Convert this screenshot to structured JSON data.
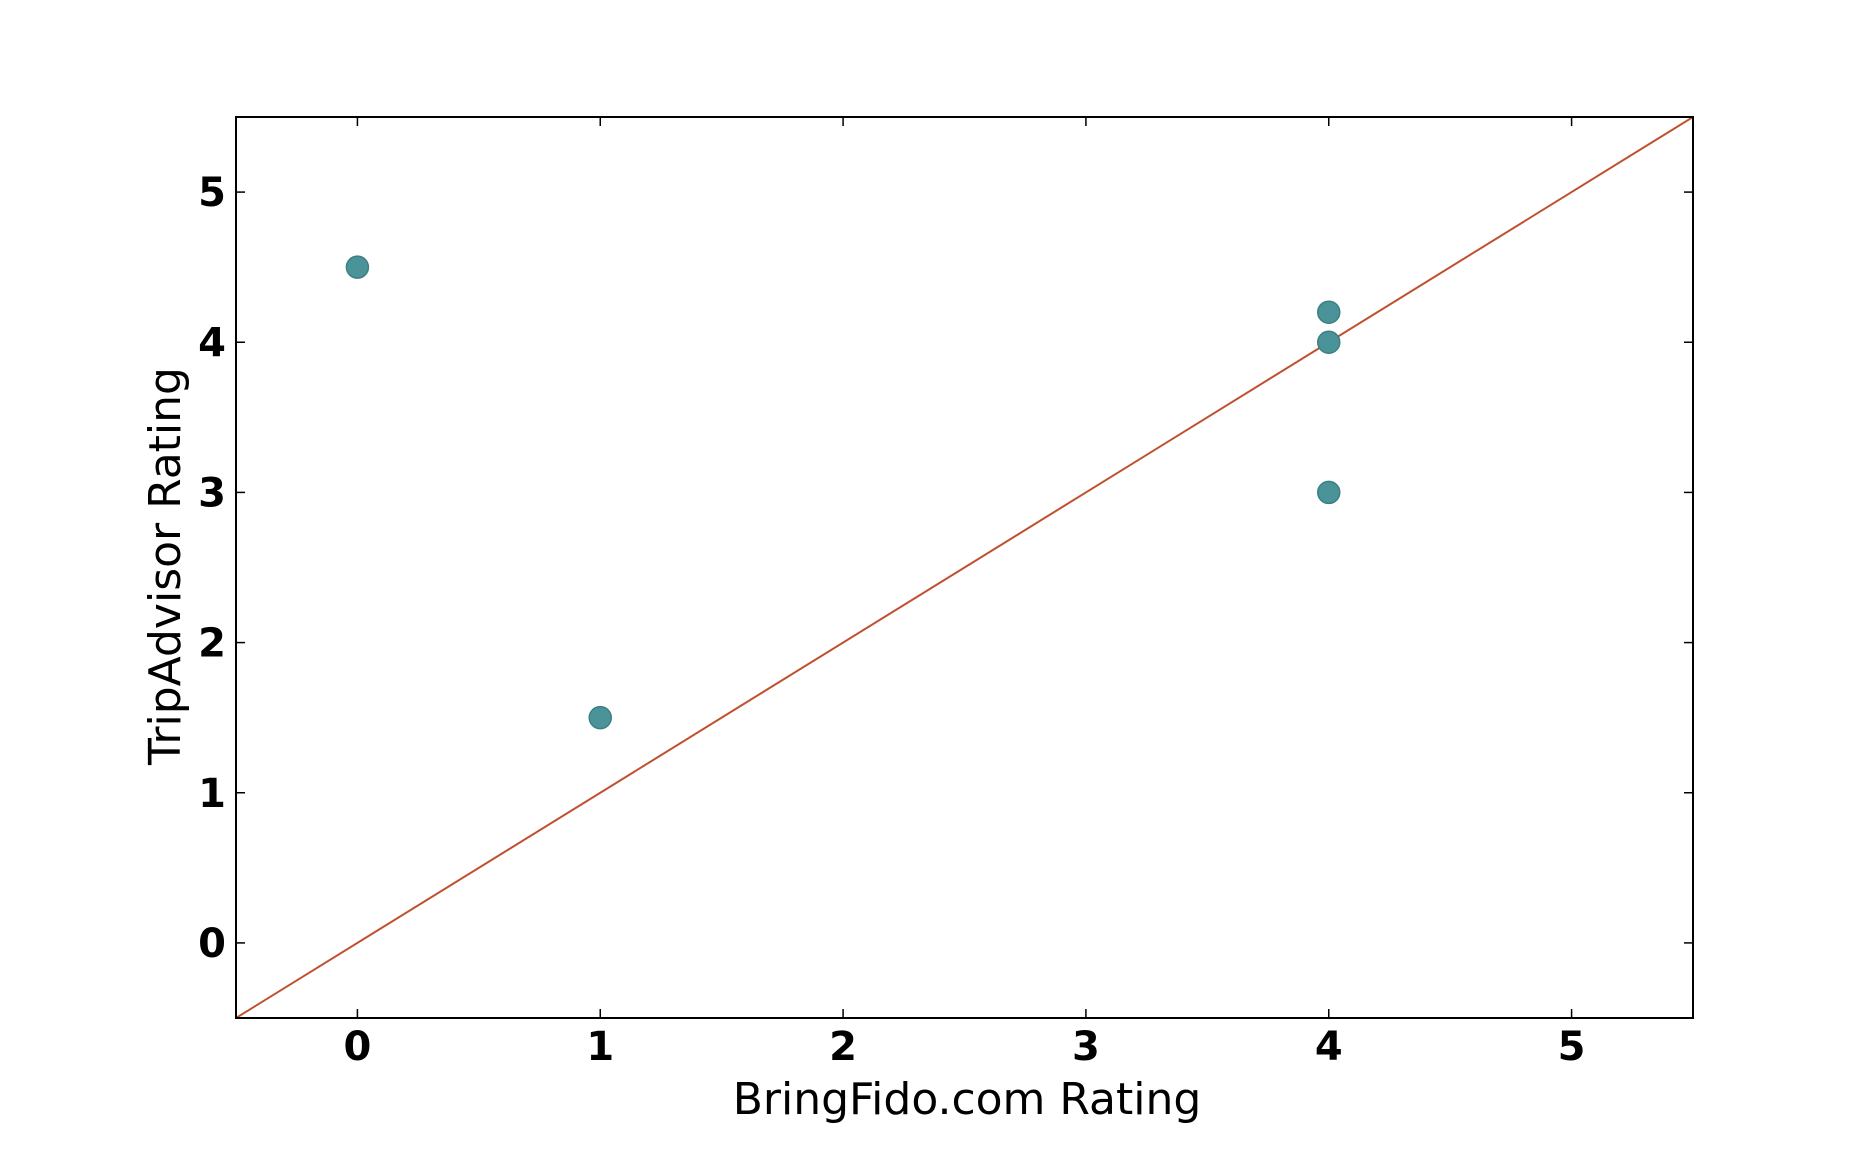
{
  "chart_data": {
    "type": "scatter",
    "xlabel": "BringFido.com Rating",
    "ylabel": "TripAdvisor Rating",
    "xlim": [
      -0.5,
      5.5
    ],
    "ylim": [
      -0.5,
      5.5
    ],
    "x_ticks": [
      0,
      1,
      2,
      3,
      4,
      5
    ],
    "y_ticks": [
      0,
      1,
      2,
      3,
      4,
      5
    ],
    "x_tick_labels": [
      "0",
      "1",
      "2",
      "3",
      "4",
      "5"
    ],
    "y_tick_labels": [
      "0",
      "1",
      "2",
      "3",
      "4",
      "5"
    ],
    "grid": false,
    "points": [
      {
        "x": 0,
        "y": 4.5
      },
      {
        "x": 1,
        "y": 1.5
      },
      {
        "x": 4,
        "y": 4.2
      },
      {
        "x": 4,
        "y": 4.0
      },
      {
        "x": 4,
        "y": 3.0
      }
    ],
    "reference_line": {
      "x": [
        -0.5,
        5.5
      ],
      "y": [
        -0.5,
        5.5
      ]
    },
    "colors": {
      "marker": "#4a9499",
      "marker_edge": "#3b7f84",
      "reference_line": "#c0502f"
    }
  }
}
